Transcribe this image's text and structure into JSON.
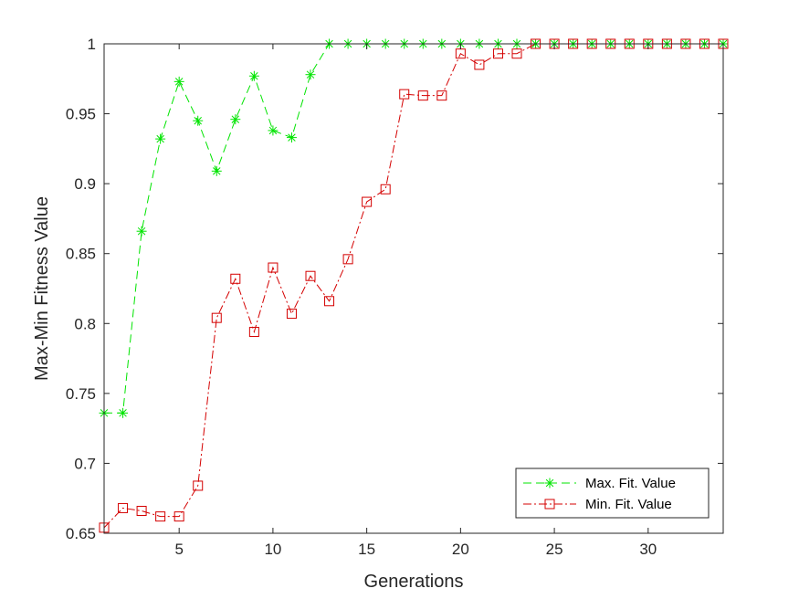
{
  "chart_data": {
    "type": "line",
    "xlabel": "Generations",
    "ylabel": "Max-Min Fitness Value",
    "xlim": [
      1,
      34
    ],
    "ylim": [
      0.65,
      1
    ],
    "xticks": [
      5,
      10,
      15,
      20,
      25,
      30
    ],
    "yticks": [
      0.65,
      0.7,
      0.75,
      0.8,
      0.85,
      0.9,
      0.95,
      1
    ],
    "ytick_labels": [
      "0.65",
      "0.7",
      "0.75",
      "0.8",
      "0.85",
      "0.9",
      "0.95",
      "1"
    ],
    "grid": false,
    "legend_position": "bottom-right",
    "x": [
      1,
      2,
      3,
      4,
      5,
      6,
      7,
      8,
      9,
      10,
      11,
      12,
      13,
      14,
      15,
      16,
      17,
      18,
      19,
      20,
      21,
      22,
      23,
      24,
      25,
      26,
      27,
      28,
      29,
      30,
      31,
      32,
      33,
      34
    ],
    "series": [
      {
        "name": "Max. Fit. Value",
        "color": "#00e400",
        "line_style": "dashed",
        "marker": "asterisk",
        "values": [
          0.736,
          0.736,
          0.866,
          0.932,
          0.973,
          0.945,
          0.909,
          0.946,
          0.977,
          0.938,
          0.933,
          0.978,
          1,
          1,
          1,
          1,
          1,
          1,
          1,
          1,
          1,
          1,
          1,
          1,
          1,
          1,
          1,
          1,
          1,
          1,
          1,
          1,
          1,
          1
        ]
      },
      {
        "name": "Min. Fit. Value",
        "color": "#d40000",
        "line_style": "dash-dot",
        "marker": "square",
        "values": [
          0.654,
          0.668,
          0.666,
          0.662,
          0.662,
          0.684,
          0.804,
          0.832,
          0.794,
          0.84,
          0.807,
          0.834,
          0.816,
          0.846,
          0.887,
          0.896,
          0.964,
          0.963,
          0.963,
          0.993,
          0.985,
          0.993,
          0.993,
          1,
          1,
          1,
          1,
          1,
          1,
          1,
          1,
          1,
          1,
          1
        ]
      }
    ]
  }
}
